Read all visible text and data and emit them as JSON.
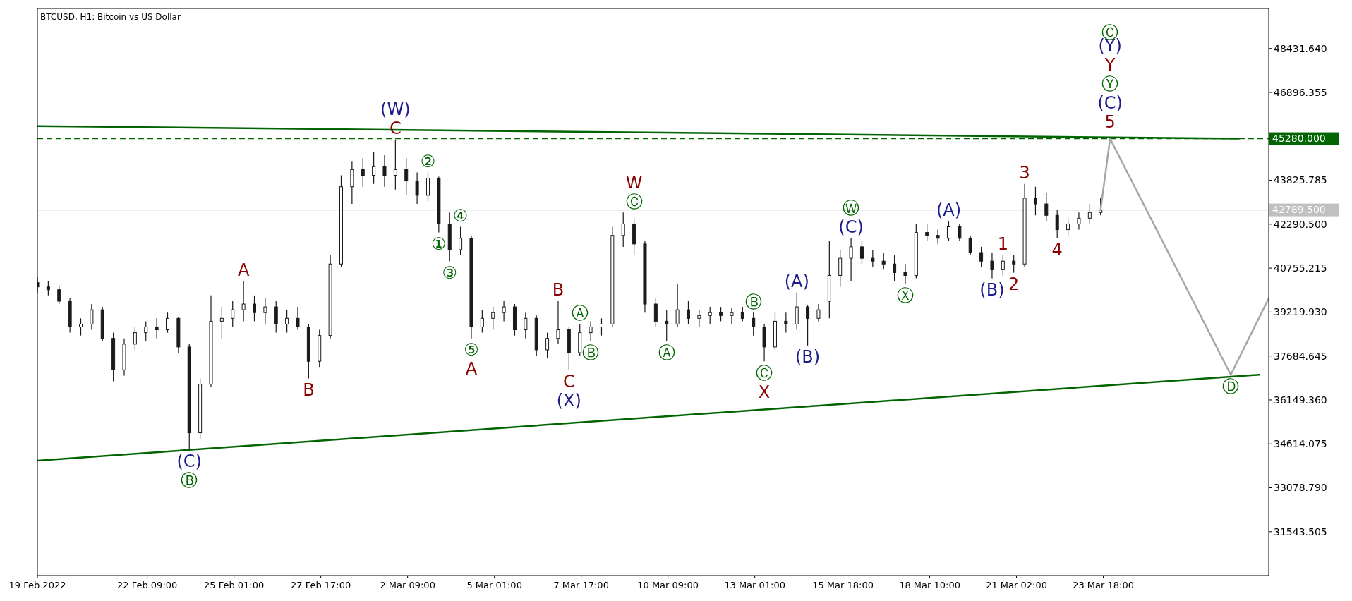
{
  "chart_data": {
    "type": "candlestick",
    "title": "BTCUSD, H1:  Bitcoin vs US Dollar",
    "xlim": [
      "2022-02-19T00:00",
      "2022-03-28T20:00"
    ],
    "ylim": [
      30010,
      49830
    ],
    "xticks": [
      {
        "value": "2022-02-19T00:00",
        "label": "19 Feb 2022"
      },
      {
        "value": "2022-02-22T09:00",
        "label": "22 Feb 09:00"
      },
      {
        "value": "2022-02-25T01:00",
        "label": "25 Feb 01:00"
      },
      {
        "value": "2022-02-27T17:00",
        "label": "27 Feb 17:00"
      },
      {
        "value": "2022-03-02T09:00",
        "label": "2 Mar 09:00"
      },
      {
        "value": "2022-03-05T01:00",
        "label": "5 Mar 01:00"
      },
      {
        "value": "2022-03-07T17:00",
        "label": "7 Mar 17:00"
      },
      {
        "value": "2022-03-10T09:00",
        "label": "10 Mar 09:00"
      },
      {
        "value": "2022-03-13T01:00",
        "label": "13 Mar 01:00"
      },
      {
        "value": "2022-03-15T18:00",
        "label": "15 Mar 18:00"
      },
      {
        "value": "2022-03-18T10:00",
        "label": "18 Mar 10:00"
      },
      {
        "value": "2022-03-21T02:00",
        "label": "21 Mar 02:00"
      },
      {
        "value": "2022-03-23T18:00",
        "label": "23 Mar 18:00"
      }
    ],
    "yticks": [
      {
        "value": 31543.505,
        "label": "31543.505"
      },
      {
        "value": 33078.79,
        "label": "33078.790"
      },
      {
        "value": 34614.075,
        "label": "34614.075"
      },
      {
        "value": 36149.36,
        "label": "36149.360"
      },
      {
        "value": 37684.645,
        "label": "37684.645"
      },
      {
        "value": 39219.93,
        "label": "39219.930"
      },
      {
        "value": 40755.215,
        "label": "40755.215"
      },
      {
        "value": 42290.5,
        "label": "42290.500"
      },
      {
        "value": 43825.785,
        "label": "43825.785"
      },
      {
        "value": 46896.355,
        "label": "46896.355"
      },
      {
        "value": 48431.64,
        "label": "48431.640"
      }
    ],
    "series": [
      {
        "color": "#1a1a1a",
        "x": [
          "2022-02-19T00:00",
          "2022-02-19T08:00",
          "2022-02-19T16:00",
          "2022-02-20T00:00",
          "2022-02-20T08:00",
          "2022-02-20T16:00",
          "2022-02-21T00:00",
          "2022-02-21T08:00",
          "2022-02-21T16:00",
          "2022-02-22T00:00",
          "2022-02-22T08:00",
          "2022-02-22T16:00",
          "2022-02-23T00:00",
          "2022-02-23T08:00",
          "2022-02-23T16:00",
          "2022-02-24T00:00",
          "2022-02-24T08:00",
          "2022-02-24T16:00",
          "2022-02-25T00:00",
          "2022-02-25T08:00",
          "2022-02-25T16:00",
          "2022-02-26T00:00",
          "2022-02-26T08:00",
          "2022-02-26T16:00",
          "2022-02-27T00:00",
          "2022-02-27T08:00",
          "2022-02-27T16:00",
          "2022-02-28T00:00",
          "2022-02-28T08:00",
          "2022-02-28T16:00",
          "2022-03-01T00:00",
          "2022-03-01T08:00",
          "2022-03-01T16:00",
          "2022-03-02T00:00",
          "2022-03-02T08:00",
          "2022-03-02T16:00",
          "2022-03-03T00:00",
          "2022-03-03T08:00",
          "2022-03-03T16:00",
          "2022-03-04T00:00",
          "2022-03-04T08:00",
          "2022-03-04T16:00",
          "2022-03-05T00:00",
          "2022-03-05T08:00",
          "2022-03-05T16:00",
          "2022-03-06T00:00",
          "2022-03-06T08:00",
          "2022-03-06T16:00",
          "2022-03-07T00:00",
          "2022-03-07T08:00",
          "2022-03-07T16:00",
          "2022-03-08T00:00",
          "2022-03-08T08:00",
          "2022-03-08T16:00",
          "2022-03-09T00:00",
          "2022-03-09T08:00",
          "2022-03-09T16:00",
          "2022-03-10T00:00",
          "2022-03-10T08:00",
          "2022-03-10T16:00",
          "2022-03-11T00:00",
          "2022-03-11T08:00",
          "2022-03-11T16:00",
          "2022-03-12T00:00",
          "2022-03-12T08:00",
          "2022-03-12T16:00",
          "2022-03-13T00:00",
          "2022-03-13T08:00",
          "2022-03-13T16:00",
          "2022-03-14T00:00",
          "2022-03-14T08:00",
          "2022-03-14T16:00",
          "2022-03-15T00:00",
          "2022-03-15T08:00",
          "2022-03-15T16:00",
          "2022-03-16T00:00",
          "2022-03-16T08:00",
          "2022-03-16T16:00",
          "2022-03-17T00:00",
          "2022-03-17T08:00",
          "2022-03-17T16:00",
          "2022-03-18T00:00",
          "2022-03-18T08:00",
          "2022-03-18T16:00",
          "2022-03-19T00:00",
          "2022-03-19T08:00",
          "2022-03-19T16:00",
          "2022-03-20T00:00",
          "2022-03-20T08:00",
          "2022-03-20T16:00",
          "2022-03-21T00:00",
          "2022-03-21T08:00",
          "2022-03-21T16:00",
          "2022-03-22T00:00",
          "2022-03-22T08:00",
          "2022-03-22T16:00",
          "2022-03-23T00:00",
          "2022-03-23T08:00",
          "2022-03-23T16:00"
        ],
        "ohlc": [
          [
            40250,
            40450,
            39900,
            40100
          ],
          [
            40100,
            40300,
            39800,
            40000
          ],
          [
            40000,
            40150,
            39500,
            39600
          ],
          [
            39600,
            39700,
            38500,
            38700
          ],
          [
            38700,
            39000,
            38400,
            38800
          ],
          [
            38800,
            39500,
            38600,
            39300
          ],
          [
            39300,
            39400,
            38200,
            38300
          ],
          [
            38300,
            38500,
            36800,
            37200
          ],
          [
            37200,
            38300,
            37000,
            38100
          ],
          [
            38100,
            38700,
            37900,
            38500
          ],
          [
            38500,
            38900,
            38200,
            38700
          ],
          [
            38700,
            39000,
            38300,
            38600
          ],
          [
            38600,
            39200,
            38500,
            39000
          ],
          [
            39000,
            39050,
            37800,
            38000
          ],
          [
            38000,
            38100,
            34400,
            35000
          ],
          [
            35000,
            36900,
            34800,
            36700
          ],
          [
            36700,
            39800,
            36600,
            38900
          ],
          [
            38900,
            39400,
            38300,
            39000
          ],
          [
            39000,
            39600,
            38700,
            39300
          ],
          [
            39300,
            40300,
            38900,
            39500
          ],
          [
            39500,
            39800,
            38900,
            39200
          ],
          [
            39200,
            39700,
            38800,
            39400
          ],
          [
            39400,
            39600,
            38500,
            38800
          ],
          [
            38800,
            39300,
            38500,
            39000
          ],
          [
            39000,
            39400,
            38600,
            38700
          ],
          [
            38700,
            38800,
            36900,
            37500
          ],
          [
            37500,
            38600,
            37300,
            38400
          ],
          [
            38400,
            41200,
            38300,
            40900
          ],
          [
            40900,
            44000,
            40800,
            43600
          ],
          [
            43600,
            44500,
            43000,
            44200
          ],
          [
            44200,
            44600,
            43600,
            44000
          ],
          [
            44000,
            44800,
            43700,
            44300
          ],
          [
            44300,
            44700,
            43600,
            44000
          ],
          [
            44000,
            45250,
            43500,
            44200
          ],
          [
            44200,
            44600,
            43300,
            43800
          ],
          [
            43800,
            44100,
            43000,
            43300
          ],
          [
            43300,
            44100,
            43100,
            43900
          ],
          [
            43900,
            43950,
            42000,
            42300
          ],
          [
            42300,
            42700,
            41000,
            41400
          ],
          [
            41400,
            42200,
            41200,
            41800
          ],
          [
            41800,
            41900,
            38300,
            38700
          ],
          [
            38700,
            39300,
            38500,
            39000
          ],
          [
            39000,
            39400,
            38600,
            39200
          ],
          [
            39200,
            39600,
            38900,
            39400
          ],
          [
            39400,
            39500,
            38400,
            38600
          ],
          [
            38600,
            39200,
            38300,
            39000
          ],
          [
            39000,
            39100,
            37700,
            37900
          ],
          [
            37900,
            38500,
            37600,
            38300
          ],
          [
            38300,
            39600,
            38100,
            38600
          ],
          [
            38600,
            38700,
            37200,
            37800
          ],
          [
            37800,
            38800,
            37700,
            38500
          ],
          [
            38500,
            38900,
            38200,
            38700
          ],
          [
            38700,
            39000,
            38400,
            38800
          ],
          [
            38800,
            42200,
            38700,
            41900
          ],
          [
            41900,
            42700,
            41500,
            42300
          ],
          [
            42300,
            42500,
            41200,
            41600
          ],
          [
            41600,
            41700,
            39200,
            39500
          ],
          [
            39500,
            39700,
            38700,
            38900
          ],
          [
            38900,
            39300,
            38200,
            38800
          ],
          [
            38800,
            40200,
            38700,
            39300
          ],
          [
            39300,
            39600,
            38800,
            39000
          ],
          [
            39000,
            39300,
            38700,
            39100
          ],
          [
            39100,
            39400,
            38800,
            39200
          ],
          [
            39200,
            39400,
            38900,
            39100
          ],
          [
            39100,
            39350,
            38800,
            39200
          ],
          [
            39200,
            39400,
            38900,
            39000
          ],
          [
            39000,
            39200,
            38400,
            38700
          ],
          [
            38700,
            38800,
            37500,
            38000
          ],
          [
            38000,
            39200,
            37900,
            38900
          ],
          [
            38900,
            39200,
            38500,
            38800
          ],
          [
            38800,
            39900,
            38600,
            39400
          ],
          [
            39400,
            39450,
            38050,
            39000
          ],
          [
            39000,
            39500,
            38900,
            39300
          ],
          [
            39600,
            41700,
            39000,
            40500
          ],
          [
            40500,
            41400,
            40100,
            41100
          ],
          [
            41100,
            41800,
            40300,
            41500
          ],
          [
            41500,
            41700,
            40900,
            41100
          ],
          [
            41100,
            41400,
            40800,
            41000
          ],
          [
            41000,
            41300,
            40700,
            40900
          ],
          [
            40900,
            41200,
            40300,
            40600
          ],
          [
            40600,
            40900,
            40200,
            40500
          ],
          [
            40500,
            42300,
            40400,
            42000
          ],
          [
            42000,
            42300,
            41700,
            41900
          ],
          [
            41900,
            42100,
            41600,
            41800
          ],
          [
            41800,
            42400,
            41700,
            42200
          ],
          [
            42200,
            42300,
            41700,
            41800
          ],
          [
            41800,
            41900,
            41200,
            41300
          ],
          [
            41300,
            41500,
            40800,
            41000
          ],
          [
            41000,
            41300,
            40400,
            40700
          ],
          [
            40700,
            41200,
            40500,
            41000
          ],
          [
            41000,
            41200,
            40600,
            40900
          ],
          [
            40900,
            43700,
            40800,
            43200
          ],
          [
            43200,
            43600,
            42600,
            43000
          ],
          [
            43000,
            43400,
            42400,
            42600
          ],
          [
            42600,
            42800,
            41800,
            42100
          ],
          [
            42100,
            42500,
            41900,
            42300
          ],
          [
            42300,
            42700,
            42100,
            42500
          ],
          [
            42500,
            43000,
            42300,
            42700
          ],
          [
            42700,
            43200,
            42600,
            42790
          ]
        ]
      },
      {
        "type": "line",
        "color": "#006400",
        "x": [
          "2022-02-19T00:00",
          "2022-03-27T22:00"
        ],
        "values": [
          45720,
          45280
        ]
      },
      {
        "type": "line",
        "color": "#006400",
        "x": [
          "2022-02-19T00:00",
          "2022-03-28T13:00"
        ],
        "values": [
          34030,
          37030
        ]
      },
      {
        "type": "line",
        "color": "#a6a6a6",
        "x": [
          "2022-03-23T16:00",
          "2022-03-23T23:00",
          "2022-03-27T16:00",
          "2022-03-28T20:00"
        ],
        "values": [
          42790,
          45280,
          37030,
          39700
        ]
      }
    ],
    "ref_lines": [
      {
        "axis": "y",
        "value": 45280,
        "label": "45280.000",
        "color": "#006400",
        "line_style": "dashed"
      },
      {
        "axis": "y",
        "value": 42789.5,
        "label": "42789.500",
        "color": "#c0c0c0",
        "line_style": "solid"
      }
    ],
    "annotations": [
      {
        "text": "(C)",
        "x": "2022-02-23T16:00",
        "y": 34400
      },
      {
        "text": "Ⓑ",
        "x": "2022-02-23T16:00",
        "y": 34400
      },
      {
        "text": "A",
        "x": "2022-02-25T08:00",
        "y": 40300
      },
      {
        "text": "B",
        "x": "2022-02-27T08:00",
        "y": 36900
      },
      {
        "text": "C",
        "x": "2022-03-02T00:00",
        "y": 45250
      },
      {
        "text": "(W)",
        "x": "2022-03-02T00:00",
        "y": 45250
      },
      {
        "text": "②",
        "x": "2022-03-03T00:00",
        "y": 44100
      },
      {
        "text": "①",
        "x": "2022-03-03T08:00",
        "y": 42000
      },
      {
        "text": "④",
        "x": "2022-03-04T00:00",
        "y": 42200
      },
      {
        "text": "③",
        "x": "2022-03-03T16:00",
        "y": 41000
      },
      {
        "text": "⑤",
        "x": "2022-03-04T08:00",
        "y": 38300
      },
      {
        "text": "A",
        "x": "2022-03-04T08:00",
        "y": 38300
      },
      {
        "text": "B",
        "x": "2022-03-07T00:00",
        "y": 39600
      },
      {
        "text": "Ⓐ",
        "x": "2022-03-07T16:00",
        "y": 38800
      },
      {
        "text": "Ⓑ",
        "x": "2022-03-08T00:00",
        "y": 38200
      },
      {
        "text": "C",
        "x": "2022-03-07T08:00",
        "y": 37200
      },
      {
        "text": "(X)",
        "x": "2022-03-07T08:00",
        "y": 37200
      },
      {
        "text": "Ⓒ",
        "x": "2022-03-09T08:00",
        "y": 42700
      },
      {
        "text": "W",
        "x": "2022-03-09T08:00",
        "y": 42700
      },
      {
        "text": "Ⓐ",
        "x": "2022-03-10T08:00",
        "y": 38200
      },
      {
        "text": "Ⓑ",
        "x": "2022-03-13T00:00",
        "y": 39200
      },
      {
        "text": "Ⓒ",
        "x": "2022-03-13T08:00",
        "y": 37500
      },
      {
        "text": "X",
        "x": "2022-03-13T08:00",
        "y": 37500
      },
      {
        "text": "(A)",
        "x": "2022-03-14T08:00",
        "y": 39900
      },
      {
        "text": "(B)",
        "x": "2022-03-14T16:00",
        "y": 38050
      },
      {
        "text": "(C)",
        "x": "2022-03-16T00:00",
        "y": 41800
      },
      {
        "text": "Ⓦ",
        "x": "2022-03-16T00:00",
        "y": 41800
      },
      {
        "text": "Ⓧ",
        "x": "2022-03-17T16:00",
        "y": 40200
      },
      {
        "text": "(A)",
        "x": "2022-03-19T00:00",
        "y": 42400
      },
      {
        "text": "(B)",
        "x": "2022-03-20T08:00",
        "y": 40400
      },
      {
        "text": "1",
        "x": "2022-03-20T16:00",
        "y": 41200
      },
      {
        "text": "2",
        "x": "2022-03-21T00:00",
        "y": 40600
      },
      {
        "text": "3",
        "x": "2022-03-21T08:00",
        "y": 43700
      },
      {
        "text": "4",
        "x": "2022-03-22T08:00",
        "y": 41800
      },
      {
        "text": "Ⓒ\n(Y)\nY\nⓎ\n(C)\n5",
        "x": "2022-03-23T23:00",
        "y": 45280
      },
      {
        "text": "Ⓓ",
        "x": "2022-03-27T16:00",
        "y": 37030
      }
    ]
  }
}
